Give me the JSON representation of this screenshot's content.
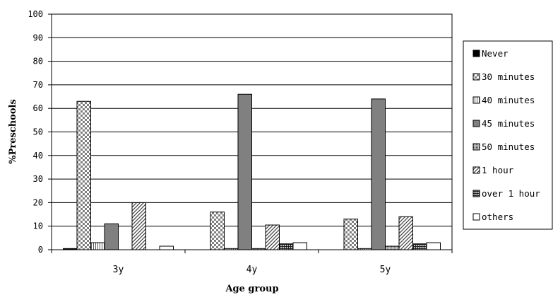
{
  "chart_data": {
    "type": "bar",
    "categories": [
      "3y",
      "4y",
      "5y"
    ],
    "series": [
      {
        "name": "Never",
        "values": [
          0.5,
          0,
          0
        ],
        "pattern": "solid-black"
      },
      {
        "name": "30 minutes",
        "values": [
          63,
          16,
          13
        ],
        "pattern": "checker"
      },
      {
        "name": "40 minutes",
        "values": [
          3,
          0.5,
          0.5
        ],
        "pattern": "vlines"
      },
      {
        "name": "45 minutes",
        "values": [
          11,
          66,
          64
        ],
        "pattern": "solid-gray"
      },
      {
        "name": "50 minutes",
        "values": [
          0,
          0.5,
          1.5
        ],
        "pattern": "dots"
      },
      {
        "name": "1 hour",
        "values": [
          20,
          10.5,
          14
        ],
        "pattern": "diagonal"
      },
      {
        "name": "over 1 hour",
        "values": [
          0,
          2.5,
          2.5
        ],
        "pattern": "grid"
      },
      {
        "name": "others",
        "values": [
          1.5,
          3,
          3
        ],
        "pattern": "white"
      }
    ],
    "xlabel": "Age group",
    "ylabel": "%Preschools",
    "ylim": [
      0,
      100
    ],
    "yticks": [
      0,
      10,
      20,
      30,
      40,
      50,
      60,
      70,
      80,
      90,
      100
    ],
    "grid": true,
    "legend_position": "right",
    "colors": {
      "plot_bg": "#ffffff",
      "grid": "#000000",
      "solid_gray": "#808080"
    }
  }
}
